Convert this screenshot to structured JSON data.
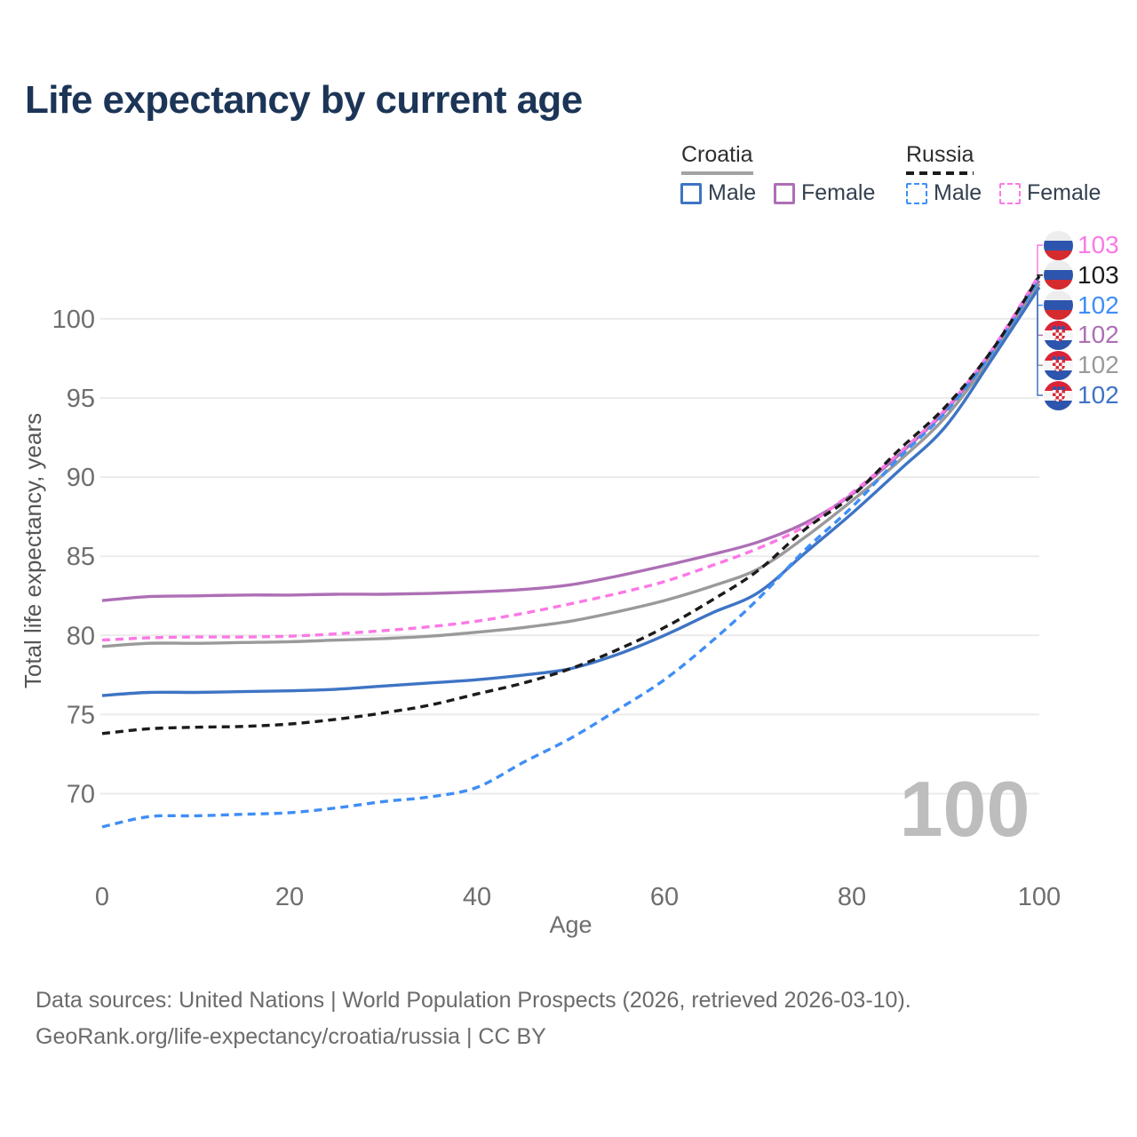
{
  "title": "Life expectancy by current age",
  "legend": {
    "groups": [
      {
        "label": "Croatia",
        "line_style": "solid",
        "items": [
          {
            "label": "Male",
            "color": "#3e74c4"
          },
          {
            "label": "Female",
            "color": "#ad6fb5"
          }
        ]
      },
      {
        "label": "Russia",
        "line_style": "dashed",
        "items": [
          {
            "label": "Male",
            "color": "#3f8ef5"
          },
          {
            "label": "Female",
            "color": "#fb79e6"
          }
        ]
      }
    ]
  },
  "watermark": "100",
  "footer": {
    "line1": "Data sources: United Nations | World Population Prospects (2026, retrieved 2026-03-10).",
    "line2": "GeoRank.org/life-expectancy/croatia/russia | CC BY"
  },
  "colors": {
    "title": "#1c3557",
    "axis_text": "#6e6e6e",
    "gridline": "#ebebeb",
    "watermark": "#bdbdbd"
  },
  "chart_data": {
    "type": "line",
    "title": "Life expectancy by current age",
    "xlabel": "Age",
    "ylabel": "Total life expectancy, years",
    "x_ticks": [
      0,
      20,
      40,
      60,
      80,
      100
    ],
    "y_ticks": [
      70,
      75,
      80,
      85,
      90,
      95,
      100
    ],
    "xlim": [
      0,
      100
    ],
    "ylim": [
      67,
      104
    ],
    "grid": "horizontal-only",
    "legend_position": "top-right",
    "hovered_age": "100",
    "ages": [
      0,
      5,
      10,
      15,
      20,
      25,
      30,
      35,
      40,
      45,
      50,
      55,
      60,
      65,
      70,
      75,
      80,
      85,
      90,
      95,
      100
    ],
    "series": [
      {
        "name": "Russia Female",
        "country": "Russia",
        "sex": "Female",
        "flag": "ru",
        "color": "#fb79e6",
        "dashed": true,
        "end_label": "103",
        "values": [
          79.7,
          79.85,
          79.9,
          79.9,
          79.95,
          80.1,
          80.3,
          80.55,
          80.9,
          81.4,
          82.0,
          82.65,
          83.4,
          84.4,
          85.5,
          86.9,
          89.0,
          91.5,
          94.3,
          98.1,
          102.8
        ]
      },
      {
        "name": "Russia",
        "country": "Russia",
        "sex": "Both",
        "flag": "ru",
        "color": "#1b1b1b",
        "dashed": true,
        "end_label": "103",
        "values": [
          73.8,
          74.1,
          74.2,
          74.25,
          74.4,
          74.7,
          75.1,
          75.6,
          76.3,
          77.0,
          77.9,
          79.1,
          80.5,
          82.2,
          84.1,
          86.7,
          88.8,
          91.7,
          94.45,
          98.05,
          102.7
        ]
      },
      {
        "name": "Russia Male",
        "country": "Russia",
        "sex": "Male",
        "flag": "ru",
        "color": "#3f8ef5",
        "dashed": true,
        "end_label": "102",
        "values": [
          67.9,
          68.55,
          68.6,
          68.7,
          68.8,
          69.1,
          69.5,
          69.8,
          70.4,
          72.0,
          73.5,
          75.3,
          77.2,
          79.6,
          82.3,
          85.4,
          88.1,
          91.2,
          94.1,
          97.9,
          102.5
        ]
      },
      {
        "name": "Croatia Female",
        "country": "Croatia",
        "sex": "Female",
        "flag": "hr",
        "color": "#ad6fb5",
        "dashed": false,
        "end_label": "102",
        "values": [
          82.2,
          82.45,
          82.5,
          82.55,
          82.55,
          82.6,
          82.6,
          82.65,
          82.75,
          82.9,
          83.2,
          83.75,
          84.4,
          85.1,
          85.9,
          87.1,
          88.9,
          91.4,
          94.2,
          97.9,
          102.4
        ]
      },
      {
        "name": "Croatia",
        "country": "Croatia",
        "sex": "Both",
        "flag": "hr",
        "color": "#9a9a9a",
        "dashed": false,
        "end_label": "102",
        "values": [
          79.3,
          79.5,
          79.5,
          79.55,
          79.6,
          79.7,
          79.8,
          79.95,
          80.2,
          80.5,
          80.9,
          81.5,
          82.2,
          83.1,
          84.2,
          86.2,
          88.5,
          91.0,
          93.8,
          97.7,
          102.2
        ]
      },
      {
        "name": "Croatia Male",
        "country": "Croatia",
        "sex": "Male",
        "flag": "hr",
        "color": "#3e74c4",
        "dashed": false,
        "end_label": "102",
        "values": [
          76.2,
          76.4,
          76.4,
          76.45,
          76.5,
          76.6,
          76.8,
          77.0,
          77.2,
          77.5,
          77.9,
          78.8,
          80.0,
          81.4,
          82.7,
          85.2,
          87.7,
          90.4,
          93.2,
          97.5,
          102.0
        ]
      }
    ]
  }
}
